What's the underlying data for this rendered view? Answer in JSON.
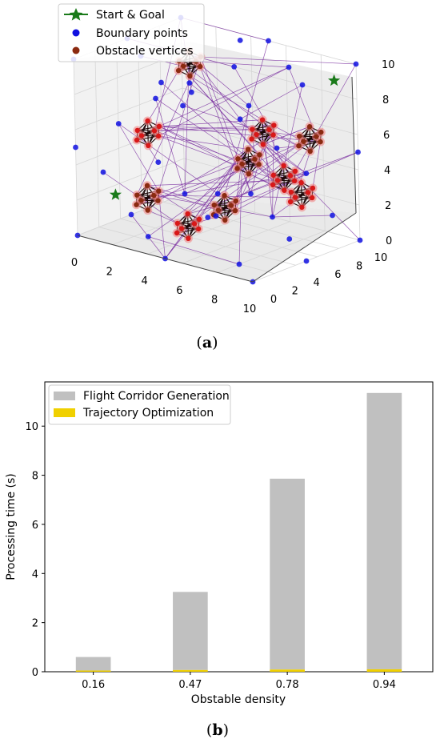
{
  "chart_data": [
    {
      "type": "scatter",
      "subplot_label_letter": "a",
      "axes": {
        "x_ticks": [
          "0",
          "2",
          "4",
          "6",
          "8",
          "10"
        ],
        "y_ticks": [
          "0",
          "2",
          "4",
          "6",
          "8",
          "10"
        ],
        "z_ticks": [
          "0",
          "2",
          "4",
          "6",
          "8",
          "10"
        ],
        "xlim": [
          0,
          10
        ],
        "ylim": [
          0,
          10
        ],
        "zlim": [
          0,
          10
        ]
      },
      "legend": {
        "placement": "top-left",
        "entries": [
          "Start & Goal",
          "Boundary points",
          "Obstacle vertices"
        ]
      },
      "colors": {
        "start_goal": "#1a7a1a",
        "boundary": "#1010e0",
        "obstacle": "#8b2a10",
        "edges": "#7b2fa0",
        "obstacle_edges": "#1a0505",
        "obstacle_glow": "#f08080"
      },
      "start_goal": [
        [
          0.5,
          0.5,
          0.5
        ],
        [
          9.5,
          9.5,
          9.5
        ]
      ],
      "obstacle_centers": [
        [
          2.0,
          7.5,
          8.5
        ],
        [
          5.8,
          8.0,
          5.5
        ],
        [
          8.0,
          8.8,
          5.5
        ],
        [
          2.0,
          3.5,
          5.5
        ],
        [
          2.2,
          3.0,
          2.0
        ],
        [
          4.8,
          2.5,
          1.2
        ],
        [
          6.0,
          4.0,
          2.2
        ],
        [
          8.2,
          6.0,
          4.0
        ],
        [
          6.8,
          5.0,
          4.8
        ],
        [
          9.5,
          5.5,
          3.5
        ]
      ],
      "boundary_points": [
        [
          0,
          0,
          0
        ],
        [
          0,
          0,
          10
        ],
        [
          0,
          10,
          10
        ],
        [
          10,
          10,
          10
        ],
        [
          10,
          0,
          0
        ],
        [
          10,
          10,
          0
        ],
        [
          0,
          10,
          0
        ],
        [
          10,
          0,
          10
        ],
        [
          0,
          5,
          0
        ],
        [
          5,
          0,
          0
        ],
        [
          5,
          10,
          0
        ],
        [
          10,
          5,
          0
        ],
        [
          0,
          0,
          5
        ],
        [
          0,
          10,
          5
        ],
        [
          10,
          0,
          5
        ],
        [
          10,
          10,
          5
        ],
        [
          0,
          5,
          10
        ],
        [
          5,
          0,
          10
        ],
        [
          5,
          10,
          10
        ],
        [
          10,
          5,
          10
        ],
        [
          0,
          2.5,
          3
        ],
        [
          0,
          7.5,
          6
        ],
        [
          2.5,
          0,
          7
        ],
        [
          7.5,
          0,
          3
        ],
        [
          10,
          2.5,
          7
        ],
        [
          10,
          7.5,
          2
        ],
        [
          3,
          10,
          8
        ],
        [
          7,
          10,
          3
        ],
        [
          2.5,
          2.5,
          0
        ],
        [
          7.5,
          7.5,
          0
        ],
        [
          3,
          8,
          0
        ],
        [
          8,
          2,
          0
        ],
        [
          2,
          3,
          10
        ],
        [
          8,
          7,
          10
        ],
        [
          4,
          9,
          10
        ],
        [
          6,
          1,
          10
        ],
        [
          5,
          5,
          2.5
        ],
        [
          3,
          6,
          7.5
        ],
        [
          7,
          4,
          7.5
        ],
        [
          1,
          6,
          3
        ]
      ]
    },
    {
      "type": "bar",
      "subplot_label_letter": "b",
      "categories": [
        "0.16",
        "0.47",
        "0.78",
        "0.94"
      ],
      "series": [
        {
          "name": "Flight Corridor Generation",
          "values": [
            0.55,
            3.18,
            7.77,
            11.25
          ],
          "color": "#c0c0c0"
        },
        {
          "name": "Trajectory Optimization",
          "values": [
            0.05,
            0.07,
            0.09,
            0.1
          ],
          "color": "#f0d000"
        }
      ],
      "xlabel": "Obstable density",
      "ylabel": "Processing time (s)",
      "ylim": [
        0,
        11.8
      ],
      "y_ticks": [
        0,
        2,
        4,
        6,
        8,
        10
      ],
      "legend": {
        "placement": "top-left"
      },
      "grid": false
    }
  ]
}
